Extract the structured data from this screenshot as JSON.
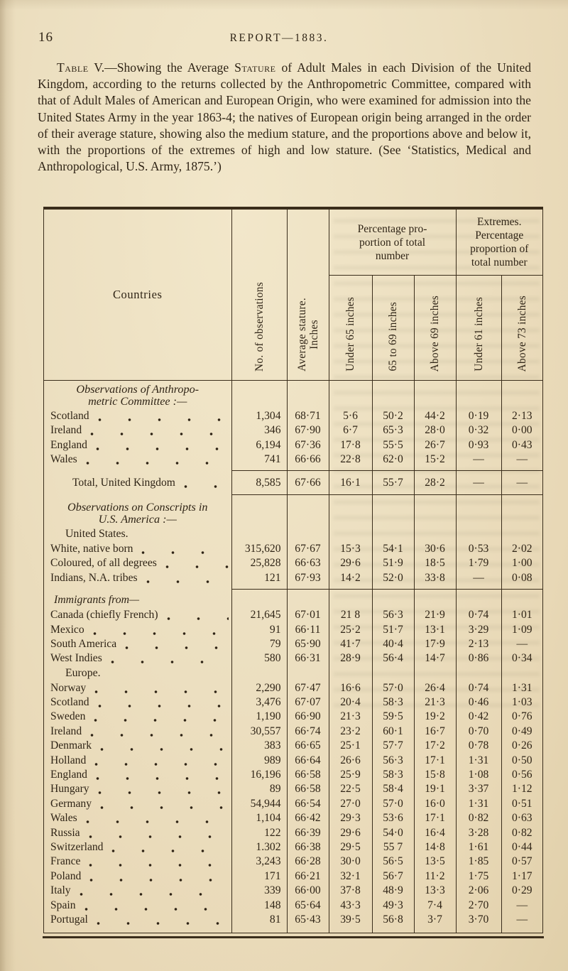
{
  "page": {
    "number": "16",
    "running_title": "REPORT—1883."
  },
  "intro": {
    "lead_smallcaps": "Table",
    "lead_rest": " V.—Showing the Average ",
    "stature_smallcaps": "Stature",
    "body_rest": " of Adult Males in each Division of the United Kingdom, according to the returns collected by the Anthropometric Committee, compared with that of Adult Males of American and European Origin, who were examined for admission into the United States Army in the year 1863-4; the natives of European origin being arranged in the order of their average stature, showing also the medium stature, and the proportions above and below it, with the proportions of the extremes of high and low stature.  (See ‘Statistics, Medical and Anthropological, U.S. Army, 1875.’)"
  },
  "table": {
    "header": {
      "countries": "Countries",
      "observations": "No. of observations",
      "stature_lines": [
        "Average stature.",
        "Inches"
      ],
      "group_percentage_lines": [
        "Percentage pro-",
        "portion of total",
        "number"
      ],
      "group_extremes_lines": [
        "Extremes.",
        "Percentage",
        "proportion of",
        "total number"
      ],
      "cols": [
        "Under 65 inches",
        "65 to 69 inches",
        "Above 69 inches",
        "Under 61 inches",
        "Above 73 inches"
      ]
    },
    "rows": [
      {
        "type": "section",
        "lines": [
          "Observations of Anthropo-",
          "metric Committee :—"
        ]
      },
      {
        "type": "data",
        "label": "Scotland",
        "values": [
          "1,304",
          "68·71",
          "5·6",
          "50·2",
          "44·2",
          "0·19",
          "2·13"
        ]
      },
      {
        "type": "data",
        "label": "Ireland",
        "values": [
          "346",
          "67·90",
          "6·7",
          "65·3",
          "28·0",
          "0·32",
          "0·00"
        ]
      },
      {
        "type": "data",
        "label": "England",
        "values": [
          "6,194",
          "67·36",
          "17·8",
          "55·5",
          "26·7",
          "0·93",
          "0·43"
        ]
      },
      {
        "type": "data",
        "label": "Wales",
        "values": [
          "741",
          "66·66",
          "22·8",
          "62·0",
          "15·2",
          "—",
          "—"
        ],
        "rule_after": true
      },
      {
        "type": "total",
        "label": "Total, United Kingdom",
        "values": [
          "8,585",
          "67·66",
          "16·1",
          "55·7",
          "28·2",
          "—",
          "—"
        ],
        "rule_after": true
      },
      {
        "type": "section",
        "lines": [
          "Observations on Conscripts in",
          "U.S. America :—"
        ]
      },
      {
        "type": "subhead",
        "label": "United States."
      },
      {
        "type": "data",
        "label": "White, native born",
        "values": [
          "315,620",
          "67·67",
          "15·3",
          "54·1",
          "30·6",
          "0·53",
          "2·02"
        ]
      },
      {
        "type": "data",
        "label": "Coloured, of all degrees",
        "values": [
          "25,828",
          "66·63",
          "29·6",
          "51·9",
          "18·5",
          "1·79",
          "1·00"
        ]
      },
      {
        "type": "data",
        "label": "Indians, N.A. tribes",
        "values": [
          "121",
          "67·93",
          "14·2",
          "52·0",
          "33·8",
          "—",
          "0·08"
        ],
        "rule_after": true
      },
      {
        "type": "subhead_italic",
        "label": "Immigrants from—"
      },
      {
        "type": "data",
        "label": "Canada (chiefly French)",
        "values": [
          "21,645",
          "67·01",
          "21 8",
          "56·3",
          "21·9",
          "0·74",
          "1·01"
        ]
      },
      {
        "type": "data",
        "label": "Mexico",
        "values": [
          "91",
          "66·11",
          "25·2",
          "51·7",
          "13·1",
          "3·29",
          "1·09"
        ]
      },
      {
        "type": "data",
        "label": "South America",
        "values": [
          "79",
          "65·90",
          "41·7",
          "40·4",
          "17·9",
          "2·13",
          "—"
        ]
      },
      {
        "type": "data",
        "label": "West Indies",
        "values": [
          "580",
          "66·31",
          "28·9",
          "56·4",
          "14·7",
          "0·86",
          "0·34"
        ]
      },
      {
        "type": "subhead",
        "label": "Europe."
      },
      {
        "type": "data",
        "label": "Norway",
        "values": [
          "2,290",
          "67·47",
          "16·6",
          "57·0",
          "26·4",
          "0·74",
          "1·31"
        ]
      },
      {
        "type": "data",
        "label": "Scotland",
        "values": [
          "3,476",
          "67·07",
          "20·4",
          "58·3",
          "21·3",
          "0·46",
          "1·03"
        ]
      },
      {
        "type": "data",
        "label": "Sweden",
        "values": [
          "1,190",
          "66·90",
          "21·3",
          "59·5",
          "19·2",
          "0·42",
          "0·76"
        ]
      },
      {
        "type": "data",
        "label": "Ireland",
        "values": [
          "30,557",
          "66·74",
          "23·2",
          "60·1",
          "16·7",
          "0·70",
          "0·49"
        ]
      },
      {
        "type": "data",
        "label": "Denmark",
        "values": [
          "383",
          "66·65",
          "25·1",
          "57·7",
          "17·2",
          "0·78",
          "0·26"
        ]
      },
      {
        "type": "data",
        "label": "Holland",
        "values": [
          "989",
          "66·64",
          "26·6",
          "56·3",
          "17·1",
          "1·31",
          "0·50"
        ]
      },
      {
        "type": "data",
        "label": "England",
        "values": [
          "16,196",
          "66·58",
          "25·9",
          "58·3",
          "15·8",
          "1·08",
          "0·56"
        ]
      },
      {
        "type": "data",
        "label": "Hungary",
        "values": [
          "89",
          "66·58",
          "22·5",
          "58·4",
          "19·1",
          "3·37",
          "1·12"
        ]
      },
      {
        "type": "data",
        "label": "Germany",
        "values": [
          "54,944",
          "66·54",
          "27·0",
          "57·0",
          "16·0",
          "1·31",
          "0·51"
        ]
      },
      {
        "type": "data",
        "label": "Wales",
        "values": [
          "1,104",
          "66·42",
          "29·3",
          "53·6",
          "17·1",
          "0·82",
          "0·63"
        ]
      },
      {
        "type": "data",
        "label": "Russia",
        "values": [
          "122",
          "66·39",
          "29·6",
          "54·0",
          "16·4",
          "3·28",
          "0·82"
        ]
      },
      {
        "type": "data",
        "label": "Switzerland",
        "values": [
          "1.302",
          "66·38",
          "29·5",
          "55 7",
          "14·8",
          "1·61",
          "0·44"
        ]
      },
      {
        "type": "data",
        "label": "France",
        "values": [
          "3,243",
          "66·28",
          "30·0",
          "56·5",
          "13·5",
          "1·85",
          "0·57"
        ]
      },
      {
        "type": "data",
        "label": "Poland",
        "values": [
          "171",
          "66·21",
          "32·1",
          "56·7",
          "11·2",
          "1·75",
          "1·17"
        ]
      },
      {
        "type": "data",
        "label": "Italy",
        "values": [
          "339",
          "66·00",
          "37·8",
          "48·9",
          "13·3",
          "2·06",
          "0·29"
        ]
      },
      {
        "type": "data",
        "label": "Spain",
        "values": [
          "148",
          "65·64",
          "43·3",
          "49·3",
          "7·4",
          "2·70",
          "—"
        ]
      },
      {
        "type": "data",
        "label": "Portugal",
        "values": [
          "81",
          "65·43",
          "39·5",
          "56·8",
          "3·7",
          "3·70",
          "—"
        ]
      }
    ]
  },
  "colors": {
    "paper": "#ecdfc0",
    "ink": "#2f2416",
    "rule": "#3a2d1b"
  }
}
